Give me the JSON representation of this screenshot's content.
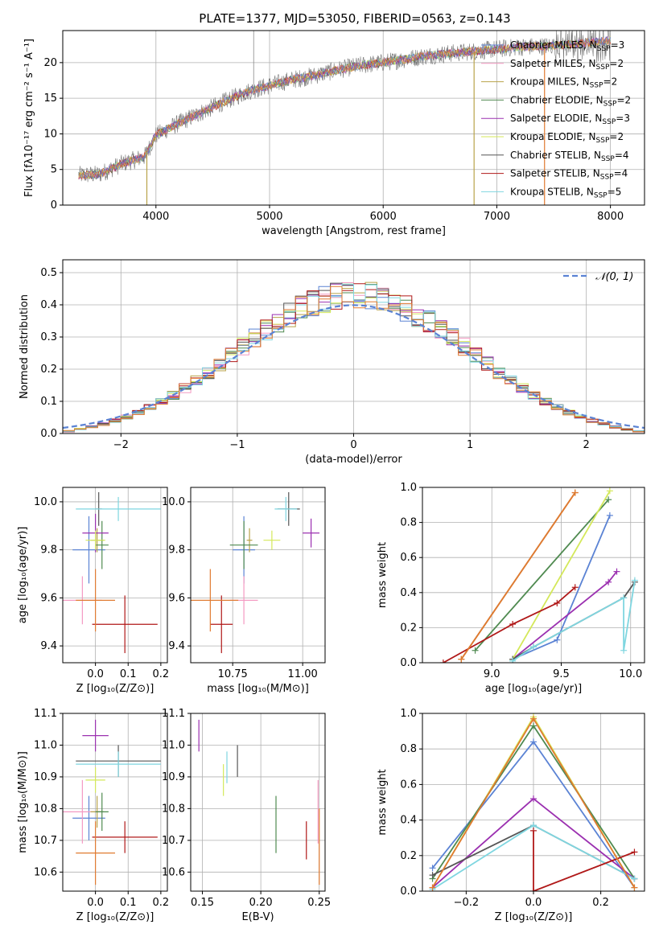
{
  "figure_title": "PLATE=1377, MJD=53050, FIBERID=0563, z=0.143",
  "colors": {
    "Chabrier MILES": "#5b83d4",
    "Salpeter MILES": "#f49ac2",
    "Kroupa MILES": "#b8a34a",
    "Chabrier ELODIE": "#4f8a50",
    "Salpeter ELODIE": "#9b30b0",
    "Kroupa ELODIE": "#d4e85a",
    "Chabrier STELIB": "#555555",
    "Salpeter STELIB": "#b01818",
    "Kroupa STELIB": "#7fd6e0",
    "gaussian": "#5b83d4",
    "orange_line": "#e07a30"
  },
  "chart_data": [
    {
      "id": "spectrum",
      "type": "line",
      "title": "",
      "xlabel": "wavelength [Angstrom, rest frame]",
      "ylabel": "Flux [fλ10⁻¹⁷ erg cm⁻² s⁻¹ A⁻¹]",
      "xlim": [
        3180,
        8300
      ],
      "ylim": [
        0,
        24.5
      ],
      "xticks": [
        4000,
        5000,
        6000,
        7000,
        8000
      ],
      "yticks": [
        0,
        5,
        10,
        15,
        20
      ],
      "legend_position": "top-right",
      "legend": [
        {
          "label": "Chabrier MILES, N_SSP=3",
          "name": "Chabrier MILES",
          "ssp": "3"
        },
        {
          "label": "Salpeter MILES, N_SSP=2",
          "name": "Salpeter MILES",
          "ssp": "2"
        },
        {
          "label": "Kroupa MILES, N_SSP=2",
          "name": "Kroupa MILES",
          "ssp": "2"
        },
        {
          "label": "Chabrier ELODIE, N_SSP=2",
          "name": "Chabrier ELODIE",
          "ssp": "2"
        },
        {
          "label": "Salpeter ELODIE, N_SSP=3",
          "name": "Salpeter ELODIE",
          "ssp": "3"
        },
        {
          "label": "Kroupa ELODIE, N_SSP=2",
          "name": "Kroupa ELODIE",
          "ssp": "2"
        },
        {
          "label": "Chabrier STELIB, N_SSP=4",
          "name": "Chabrier STELIB",
          "ssp": "4"
        },
        {
          "label": "Salpeter STELIB, N_SSP=4",
          "name": "Salpeter STELIB",
          "ssp": "4"
        },
        {
          "label": "Kroupa STELIB, N_SSP=5",
          "name": "Kroupa STELIB",
          "ssp": "5"
        }
      ],
      "continuum": {
        "x": [
          3320,
          3500,
          3700,
          3900,
          4000,
          4200,
          4400,
          4600,
          4800,
          5000,
          5200,
          5400,
          5600,
          5800,
          6000,
          6200,
          6400,
          6600,
          6800,
          7000,
          7200,
          7400,
          7600,
          7800,
          8000
        ],
        "y": [
          4.2,
          4.3,
          5.8,
          6.8,
          9.8,
          11.5,
          13.0,
          14.5,
          15.9,
          16.8,
          17.6,
          18.2,
          19.0,
          19.6,
          20.0,
          20.5,
          21.0,
          21.3,
          21.6,
          21.9,
          22.2,
          22.3,
          22.5,
          22.8,
          23.1
        ]
      },
      "gaps": [
        {
          "x": 3920,
          "y_low": 0,
          "color_key": "Kroupa MILES"
        },
        {
          "x": 6800,
          "y_low": 0,
          "color_key": "Kroupa MILES"
        },
        {
          "x": 7420,
          "y_low": 0,
          "color_key": "orange_line"
        }
      ]
    },
    {
      "id": "residual-histogram",
      "type": "histogram",
      "xlabel": "(data-model)/error",
      "ylabel": "Normed distribution",
      "xlim": [
        -2.5,
        2.5
      ],
      "ylim": [
        0,
        0.54
      ],
      "xticks": [
        -2,
        -1,
        0,
        1,
        2
      ],
      "yticks": [
        0.0,
        0.1,
        0.2,
        0.3,
        0.4,
        0.5
      ],
      "legend_position": "top-right",
      "legend": [
        {
          "label": "𝒩(0, 1)",
          "style": "dashed"
        }
      ],
      "bin_edges_start": -2.5,
      "bin_width": 0.1,
      "gaussian": {
        "mean": 0,
        "sigma": 1
      }
    },
    {
      "id": "age-vs-Z",
      "type": "errorbar",
      "xlabel": "Z [log₁₀(Z/Z⊙)]",
      "ylabel": "age  [log₁₀(age/yr)]",
      "xlim": [
        -0.1,
        0.22
      ],
      "ylim": [
        9.33,
        10.06
      ],
      "xticks": [
        0.0,
        0.1,
        0.2
      ],
      "yticks": [
        9.4,
        9.6,
        9.8,
        10.0
      ],
      "points": [
        {
          "series": "Chabrier MILES",
          "x": -0.02,
          "xerr": 0.05,
          "y": 9.8,
          "yerr": 0.14
        },
        {
          "series": "Salpeter MILES",
          "x": -0.04,
          "xerr": 0.06,
          "y": 9.59,
          "yerr": 0.1
        },
        {
          "series": "Kroupa MILES",
          "x": 0.005,
          "xerr": 0.02,
          "y": 9.84,
          "yerr": 0.05
        },
        {
          "series": "Chabrier ELODIE",
          "x": 0.02,
          "xerr": 0.02,
          "y": 9.82,
          "yerr": 0.1
        },
        {
          "series": "Salpeter ELODIE",
          "x": 0.0,
          "xerr": 0.04,
          "y": 9.87,
          "yerr": 0.08
        },
        {
          "series": "Kroupa ELODIE",
          "x": 0.0,
          "xerr": 0.03,
          "y": 9.84,
          "yerr": 0.04
        },
        {
          "series": "Chabrier STELIB",
          "x": 0.01,
          "xerr": 0.01,
          "y": 9.97,
          "yerr": 0.07
        },
        {
          "series": "Salpeter STELIB",
          "x": 0.09,
          "xerr": 0.1,
          "y": 9.49,
          "yerr": 0.12
        },
        {
          "series": "Kroupa STELIB",
          "x": 0.07,
          "xerr": 0.13,
          "y": 9.97,
          "yerr": 0.05
        },
        {
          "series": "orange_line",
          "x": 0.0,
          "xerr": 0.06,
          "y": 9.59,
          "yerr": 0.13
        }
      ]
    },
    {
      "id": "age-vs-mass",
      "type": "errorbar",
      "xlabel": "mass [log₁₀(M/M⊙)]",
      "ylabel": "",
      "xlim": [
        10.6,
        11.08
      ],
      "ylim": [
        9.33,
        10.06
      ],
      "xticks": [
        10.75,
        11.0
      ],
      "yticks": [
        9.4,
        9.6,
        9.8,
        10.0
      ],
      "points": [
        {
          "series": "Chabrier MILES",
          "x": 10.79,
          "xerr": 0.04,
          "y": 9.8,
          "yerr": 0.14
        },
        {
          "series": "Salpeter MILES",
          "x": 10.79,
          "xerr": 0.05,
          "y": 9.59,
          "yerr": 0.1
        },
        {
          "series": "Kroupa MILES",
          "x": 10.81,
          "xerr": 0.01,
          "y": 9.84,
          "yerr": 0.05
        },
        {
          "series": "Chabrier ELODIE",
          "x": 10.79,
          "xerr": 0.05,
          "y": 9.82,
          "yerr": 0.1
        },
        {
          "series": "Salpeter ELODIE",
          "x": 11.03,
          "xerr": 0.03,
          "y": 9.87,
          "yerr": 0.06
        },
        {
          "series": "Kroupa ELODIE",
          "x": 10.89,
          "xerr": 0.03,
          "y": 9.84,
          "yerr": 0.04
        },
        {
          "series": "Chabrier STELIB",
          "x": 10.95,
          "xerr": 0.04,
          "y": 9.97,
          "yerr": 0.07
        },
        {
          "series": "Salpeter STELIB",
          "x": 10.71,
          "xerr": 0.04,
          "y": 9.49,
          "yerr": 0.12
        },
        {
          "series": "Kroupa STELIB",
          "x": 10.94,
          "xerr": 0.04,
          "y": 9.97,
          "yerr": 0.05
        },
        {
          "series": "orange_line",
          "x": 10.67,
          "xerr": 0.1,
          "y": 9.59,
          "yerr": 0.13
        }
      ]
    },
    {
      "id": "weight-vs-age",
      "type": "line",
      "xlabel": "age  [log₁₀(age/yr)]",
      "ylabel": "mass weight",
      "xlim": [
        8.5,
        10.1
      ],
      "ylim": [
        0,
        1.0
      ],
      "xticks": [
        9.0,
        9.5,
        10.0
      ],
      "yticks": [
        0.0,
        0.2,
        0.4,
        0.6,
        0.8,
        1.0
      ],
      "series": [
        {
          "name": "Chabrier MILES",
          "x": [
            9.15,
            9.47,
            9.85
          ],
          "y": [
            0.02,
            0.13,
            0.84
          ]
        },
        {
          "name": "Salpeter MILES",
          "x": [
            8.78,
            9.6
          ],
          "y": [
            0.02,
            0.97
          ]
        },
        {
          "name": "Kroupa MILES",
          "x": [
            8.78,
            9.6
          ],
          "y": [
            0.02,
            0.97
          ]
        },
        {
          "name": "Chabrier ELODIE",
          "x": [
            8.88,
            9.84
          ],
          "y": [
            0.07,
            0.93
          ]
        },
        {
          "name": "Salpeter ELODIE",
          "x": [
            9.15,
            9.84,
            9.9
          ],
          "y": [
            0.02,
            0.46,
            0.52
          ]
        },
        {
          "name": "Kroupa ELODIE",
          "x": [
            9.15,
            9.85
          ],
          "y": [
            0.02,
            0.98
          ]
        },
        {
          "name": "Chabrier STELIB",
          "x": [
            9.15,
            9.3,
            9.95,
            10.03
          ],
          "y": [
            0.02,
            0.09,
            0.37,
            0.46
          ]
        },
        {
          "name": "Salpeter STELIB",
          "x": [
            8.65,
            9.15,
            9.47,
            9.6
          ],
          "y": [
            0.0,
            0.22,
            0.34,
            0.43
          ]
        },
        {
          "name": "Kroupa STELIB",
          "x": [
            9.15,
            9.3,
            9.95,
            9.95,
            10.03
          ],
          "y": [
            0.01,
            0.09,
            0.37,
            0.07,
            0.47
          ]
        },
        {
          "name": "orange_line",
          "x": [
            8.78,
            9.6
          ],
          "y": [
            0.02,
            0.97
          ]
        }
      ]
    },
    {
      "id": "mass-vs-Z",
      "type": "errorbar",
      "xlabel": "Z [log₁₀(Z/Z⊙)]",
      "ylabel": "mass [log₁₀(M/M⊙)]",
      "xlim": [
        -0.1,
        0.22
      ],
      "ylim": [
        10.54,
        11.1
      ],
      "xticks": [
        0.0,
        0.1,
        0.2
      ],
      "yticks": [
        10.6,
        10.7,
        10.8,
        10.9,
        11.0,
        11.1
      ],
      "points": [
        {
          "series": "Chabrier MILES",
          "x": -0.02,
          "xerr": 0.05,
          "y": 10.77,
          "yerr": 0.07
        },
        {
          "series": "Salpeter MILES",
          "x": -0.04,
          "xerr": 0.06,
          "y": 10.79,
          "yerr": 0.1
        },
        {
          "series": "Kroupa MILES",
          "x": 0.005,
          "xerr": 0.02,
          "y": 10.79,
          "yerr": 0.05
        },
        {
          "series": "Chabrier ELODIE",
          "x": 0.02,
          "xerr": 0.02,
          "y": 10.79,
          "yerr": 0.06
        },
        {
          "series": "Salpeter ELODIE",
          "x": 0.0,
          "xerr": 0.04,
          "y": 11.03,
          "yerr": 0.05
        },
        {
          "series": "Kroupa ELODIE",
          "x": 0.0,
          "xerr": 0.03,
          "y": 10.89,
          "yerr": 0.04
        },
        {
          "series": "Chabrier STELIB",
          "x": 0.07,
          "xerr": 0.13,
          "y": 10.95,
          "yerr": 0.05
        },
        {
          "series": "Salpeter STELIB",
          "x": 0.09,
          "xerr": 0.1,
          "y": 10.71,
          "yerr": 0.05
        },
        {
          "series": "Kroupa STELIB",
          "x": 0.07,
          "xerr": 0.13,
          "y": 10.94,
          "yerr": 0.04
        },
        {
          "series": "orange_line",
          "x": 0.0,
          "xerr": 0.06,
          "y": 10.66,
          "yerr": 0.1
        }
      ]
    },
    {
      "id": "mass-vs-EBV",
      "type": "errorbar",
      "xlabel": "E(B-V)",
      "ylabel": "",
      "xlim": [
        0.14,
        0.255
      ],
      "ylim": [
        10.54,
        11.1
      ],
      "xticks": [
        0.15,
        0.2,
        0.25
      ],
      "yticks": [
        10.6,
        10.7,
        10.8,
        10.9,
        11.0,
        11.1
      ],
      "points": [
        {
          "series": "Salpeter ELODIE",
          "x": 0.147,
          "xerr": 0,
          "y": 11.03,
          "yerr": 0.05
        },
        {
          "series": "Kroupa ELODIE",
          "x": 0.168,
          "xerr": 0,
          "y": 10.89,
          "yerr": 0.05
        },
        {
          "series": "Kroupa STELIB",
          "x": 0.171,
          "xerr": 0,
          "y": 10.93,
          "yerr": 0.05
        },
        {
          "series": "Chabrier STELIB",
          "x": 0.18,
          "xerr": 0,
          "y": 10.95,
          "yerr": 0.05
        },
        {
          "series": "Chabrier ELODIE",
          "x": 0.213,
          "xerr": 0,
          "y": 10.75,
          "yerr": 0.09
        },
        {
          "series": "Salpeter STELIB",
          "x": 0.239,
          "xerr": 0,
          "y": 10.7,
          "yerr": 0.06
        },
        {
          "series": "Salpeter MILES",
          "x": 0.249,
          "xerr": 0,
          "y": 10.79,
          "yerr": 0.1
        },
        {
          "series": "orange_line",
          "x": 0.25,
          "xerr": 0,
          "y": 10.68,
          "yerr": 0.12
        }
      ]
    },
    {
      "id": "weight-vs-Z",
      "type": "line",
      "xlabel": "Z [log₁₀(Z/Z⊙)]",
      "ylabel": "mass weight",
      "xlim": [
        -0.33,
        0.33
      ],
      "ylim": [
        0,
        1.0
      ],
      "xticks": [
        -0.2,
        0.0,
        0.2
      ],
      "yticks": [
        0.0,
        0.2,
        0.4,
        0.6,
        0.8,
        1.0
      ],
      "series": [
        {
          "name": "Chabrier MILES",
          "x": [
            -0.3,
            0.0,
            0.3
          ],
          "y": [
            0.13,
            0.84,
            0.02
          ]
        },
        {
          "name": "Kroupa ELODIE",
          "x": [
            -0.3,
            0.0,
            0.3
          ],
          "y": [
            0.02,
            0.98,
            0.02
          ]
        },
        {
          "name": "Chabrier ELODIE",
          "x": [
            -0.3,
            0.0,
            0.3
          ],
          "y": [
            0.07,
            0.93,
            0.07
          ]
        },
        {
          "name": "Salpeter ELODIE",
          "x": [
            -0.3,
            0.0,
            0.3
          ],
          "y": [
            0.02,
            0.52,
            0.07
          ]
        },
        {
          "name": "Chabrier STELIB",
          "x": [
            -0.3,
            0.0,
            0.3
          ],
          "y": [
            0.09,
            0.37,
            0.07
          ]
        },
        {
          "name": "Kroupa STELIB",
          "x": [
            -0.3,
            0.0,
            0.3
          ],
          "y": [
            0.01,
            0.37,
            0.07
          ]
        },
        {
          "name": "Salpeter STELIB",
          "x": [
            0.0,
            0.0,
            0.3
          ],
          "y": [
            0.34,
            0.0,
            0.22
          ]
        },
        {
          "name": "orange_line",
          "x": [
            -0.3,
            0.0,
            0.3
          ],
          "y": [
            0.02,
            0.97,
            0.02
          ]
        }
      ]
    }
  ]
}
